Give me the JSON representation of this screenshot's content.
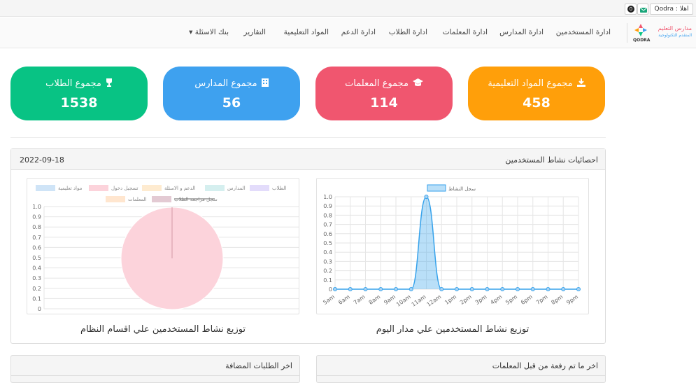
{
  "topbar": {
    "greeting": "Qodra : اهلا",
    "notification_count": "0"
  },
  "brand": {
    "name_line1": "مدارس التعليم",
    "name_line2": "المتقدم التكنولوجية",
    "mark": "QODRA"
  },
  "nav": [
    {
      "label": "ادارة المستخدمين"
    },
    {
      "label": "ادارة المدارس"
    },
    {
      "label": "ادارة المعلمات"
    },
    {
      "label": "ادارة الطلاب"
    },
    {
      "label": "ادارة الدعم"
    },
    {
      "label": "المواد التعليمية"
    },
    {
      "label": "التقارير"
    },
    {
      "label": "بنك الاسئلة ▾"
    }
  ],
  "stats": [
    {
      "title": "مجموع المواد التعليمية",
      "value": "458",
      "color": "#ff9f0a",
      "icon": "download-icon"
    },
    {
      "title": "مجموع المعلمات",
      "value": "114",
      "color": "#f0566f",
      "icon": "graduation-cap-icon"
    },
    {
      "title": "مجموع المدارس",
      "value": "56",
      "color": "#3ea1ef",
      "icon": "building-icon"
    },
    {
      "title": "مجموع الطلاب",
      "value": "1538",
      "color": "#08c384",
      "icon": "trophy-icon"
    }
  ],
  "activity": {
    "title": "احصائيات نشاط المستخدمين",
    "date": "2022-09-18",
    "left_caption": "توزيع نشاط المستخدمين علي مدار اليوم",
    "right_caption": "توزيع نشاط المستخدمين علي اقسام النظام"
  },
  "chart_data": [
    {
      "type": "area",
      "legend": [
        "سجل النشاط"
      ],
      "legend_position": "top",
      "x": [
        "5am",
        "6am",
        "7am",
        "8am",
        "9am",
        "10am",
        "11am",
        "12am",
        "1pm",
        "2pm",
        "3pm",
        "4pm",
        "5pm",
        "6pm",
        "7pm",
        "8pm",
        "9pm"
      ],
      "series": [
        {
          "name": "سجل النشاط",
          "values": [
            0,
            0,
            0,
            0,
            0,
            0,
            1,
            0,
            0,
            0,
            0,
            0,
            0,
            0,
            0,
            0,
            0
          ],
          "color": "#36a2eb"
        }
      ],
      "yticks": [
        "1.0",
        "0.9",
        "0.8",
        "0.7",
        "0.6",
        "0.5",
        "0.4",
        "0.3",
        "0.2",
        "0.1",
        "0"
      ],
      "ylim": [
        0,
        1
      ],
      "grid": true
    },
    {
      "type": "pie",
      "legend_position": "top",
      "categories": [
        "مواد تعليمية",
        "تسجيل دخول",
        "الدعم و الاسئلة",
        "المدارس",
        "الطلاب",
        "المعلمات",
        "سجل مراجعة الطلاب"
      ],
      "colors": [
        "#cfe4f7",
        "#fcd3db",
        "#feebd0",
        "#d5efef",
        "#e3dcfb",
        "#ffe6cf",
        "#e3cad3"
      ],
      "hidden": [
        "سجل مراجعة الطلاب"
      ],
      "values": [
        0,
        1,
        0,
        0,
        0,
        0,
        0
      ],
      "slice_color": "#fcd3db",
      "yticks": [
        "1.0",
        "0.9",
        "0.8",
        "0.7",
        "0.6",
        "0.5",
        "0.4",
        "0.3",
        "0.2",
        "0.1",
        "0"
      ],
      "grid": true
    }
  ],
  "bottom": {
    "left_title": "اخر الطلبات المضافة",
    "right_title": "اخر ما تم رفعة من قبل المعلمات"
  }
}
